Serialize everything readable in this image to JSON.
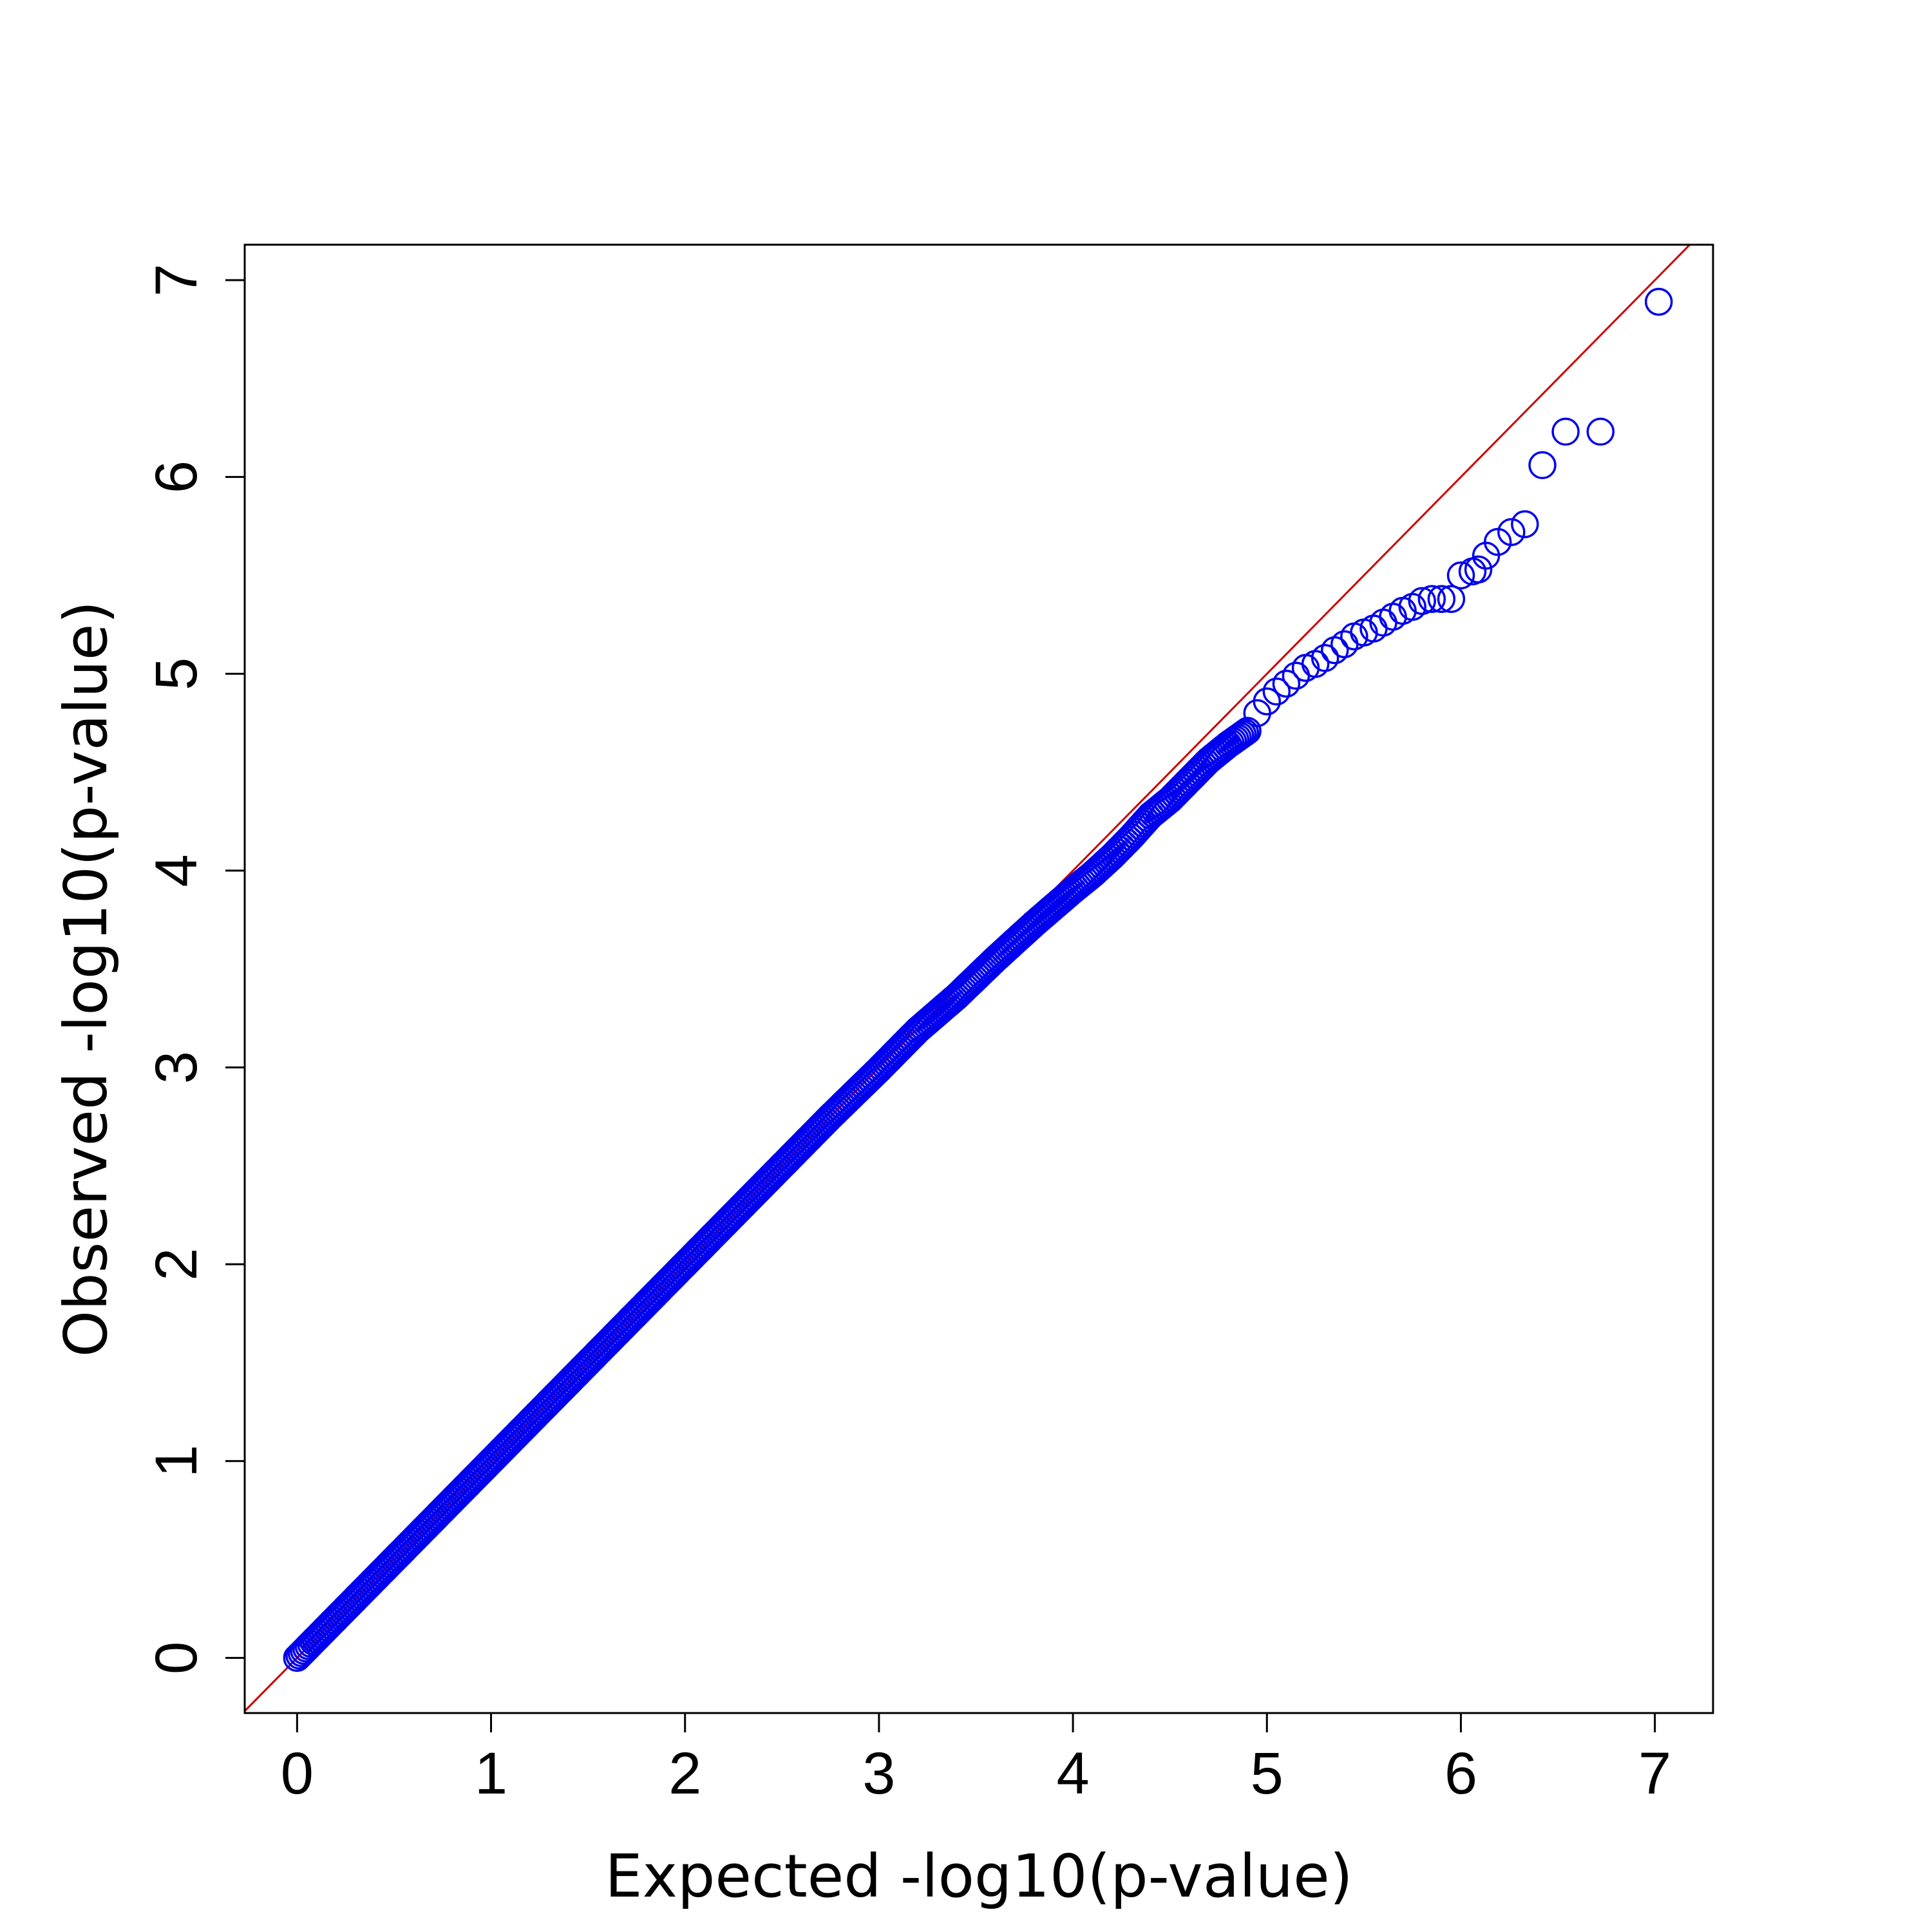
{
  "chart_data": {
    "type": "scatter",
    "title": "",
    "xlabel": "Expected -log10(p-value)",
    "ylabel": "Observed -log10(p-value)",
    "xlim": [
      -0.27,
      7.3
    ],
    "ylim": [
      -0.28,
      7.18
    ],
    "x_ticks": [
      0,
      1,
      2,
      3,
      4,
      5,
      6,
      7
    ],
    "y_ticks": [
      0,
      1,
      2,
      3,
      4,
      5,
      6,
      7
    ],
    "x_tick_labels": [
      "0",
      "1",
      "2",
      "3",
      "4",
      "5",
      "6",
      "7"
    ],
    "y_tick_labels": [
      "0",
      "1",
      "2",
      "3",
      "4",
      "5",
      "6",
      "7"
    ],
    "grid": false,
    "legend": "none",
    "reference_line": {
      "slope": 1,
      "intercept": 0,
      "color": "#cc0000"
    },
    "point_color": "#0000ee",
    "series": [
      {
        "x": [
          0.0,
          0.25,
          0.5,
          0.75,
          1.0,
          1.25,
          1.5,
          1.75,
          2.0,
          2.25,
          2.5,
          2.75,
          3.0,
          3.2,
          3.4,
          3.6,
          3.8,
          4.0,
          4.1,
          4.2,
          4.3,
          4.4,
          4.5,
          4.6,
          4.7,
          4.8,
          4.9,
          4.95,
          5.0,
          5.05,
          5.1,
          5.15,
          5.2,
          5.25,
          5.3,
          5.35,
          5.4,
          5.45,
          5.5,
          5.55,
          5.6,
          5.65,
          5.7,
          5.75,
          5.8,
          5.85,
          5.9,
          5.95,
          6.0,
          6.06,
          6.09,
          6.13,
          6.19,
          6.26,
          6.33,
          6.42,
          6.54,
          6.72,
          7.02
        ],
        "y": [
          0.0,
          0.25,
          0.5,
          0.75,
          1.0,
          1.25,
          1.5,
          1.75,
          2.0,
          2.25,
          2.5,
          2.75,
          2.99,
          3.19,
          3.36,
          3.55,
          3.73,
          3.9,
          3.98,
          4.07,
          4.17,
          4.28,
          4.36,
          4.46,
          4.56,
          4.64,
          4.71,
          4.8,
          4.86,
          4.91,
          4.95,
          4.99,
          5.03,
          5.05,
          5.08,
          5.12,
          5.15,
          5.19,
          5.21,
          5.23,
          5.26,
          5.29,
          5.32,
          5.34,
          5.37,
          5.38,
          5.38,
          5.38,
          5.5,
          5.52,
          5.53,
          5.6,
          5.67,
          5.72,
          5.76,
          6.06,
          6.23,
          6.23,
          6.89
        ]
      }
    ]
  }
}
